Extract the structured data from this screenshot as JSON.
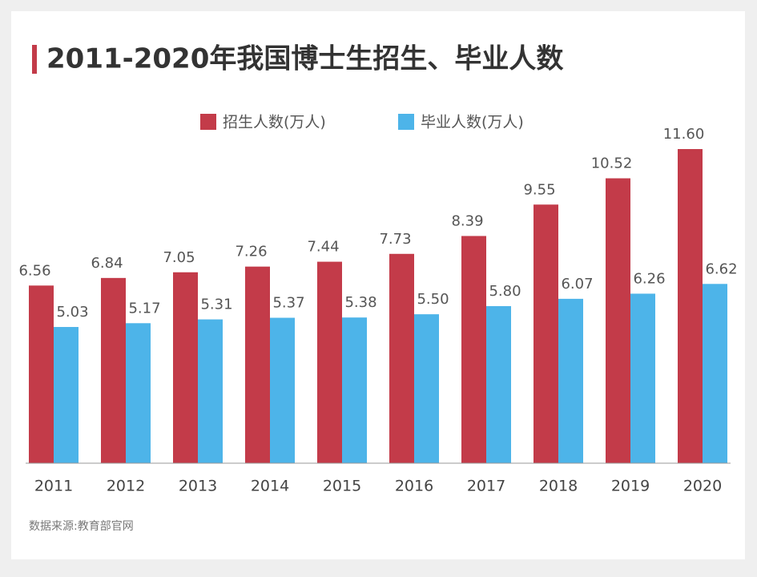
{
  "chart_data": {
    "type": "bar",
    "title": "2011-2020年我国博士生招生、毕业人数",
    "categories": [
      "2011",
      "2012",
      "2013",
      "2014",
      "2015",
      "2016",
      "2017",
      "2018",
      "2019",
      "2020"
    ],
    "series": [
      {
        "name": "招生人数(万人)",
        "color": "#c33b49",
        "values": [
          6.56,
          6.84,
          7.05,
          7.26,
          7.44,
          7.73,
          8.39,
          9.55,
          10.52,
          11.6
        ],
        "value_labels": [
          "6.56",
          "6.84",
          "7.05",
          "7.26",
          "7.44",
          "7.73",
          "8.39",
          "9.55",
          "10.52",
          "11.60"
        ]
      },
      {
        "name": "毕业人数(万人)",
        "color": "#4db4e9",
        "values": [
          5.03,
          5.17,
          5.31,
          5.37,
          5.38,
          5.5,
          5.8,
          6.07,
          6.26,
          6.62
        ],
        "value_labels": [
          "5.03",
          "5.17",
          "5.31",
          "5.37",
          "5.38",
          "5.50",
          "5.80",
          "6.07",
          "6.26",
          "6.62"
        ]
      }
    ],
    "source": "数据来源:教育部官网"
  }
}
